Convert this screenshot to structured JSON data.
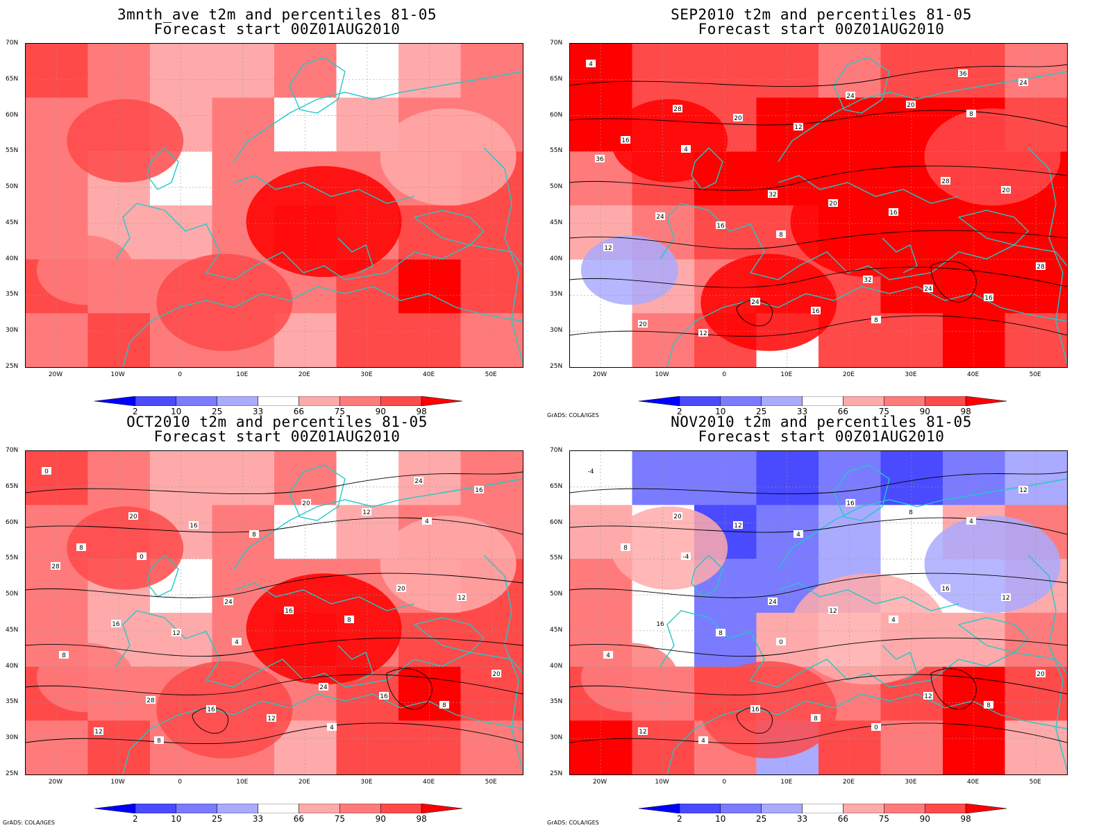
{
  "colorbar": {
    "labels": [
      "2",
      "10",
      "25",
      "33",
      "66",
      "75",
      "90",
      "98"
    ],
    "colors": [
      "#0000ff",
      "#4a4aff",
      "#7b7bff",
      "#aaaaff",
      "#ffffff",
      "#ffaaaa",
      "#ff7b7b",
      "#ff4a4a",
      "#ff0000"
    ]
  },
  "axes": {
    "y_ticks": [
      "70N",
      "65N",
      "60N",
      "55N",
      "50N",
      "45N",
      "40N",
      "35N",
      "30N",
      "25N"
    ],
    "x_ticks": [
      "20W",
      "10W",
      "0",
      "10E",
      "20E",
      "30E",
      "40E",
      "50E"
    ]
  },
  "credit": "GrADS: COLA/IGES",
  "panels": [
    {
      "title_line1": "3mnth_ave t2m and percentiles 81-05",
      "title_line2": "Forecast start 00Z01AUG2010",
      "show_credit": false,
      "dominant": "warm",
      "contour_labels": []
    },
    {
      "title_line1": "SEP2010 t2m and percentiles 81-05",
      "title_line2": "Forecast start 00Z01AUG2010",
      "show_credit": true,
      "dominant": "hot",
      "contour_labels": [
        "4",
        "4",
        "8",
        "8",
        "8",
        "12",
        "12",
        "12",
        "16",
        "16",
        "16",
        "16",
        "16",
        "20",
        "20",
        "20",
        "20",
        "20",
        "24",
        "24",
        "24",
        "24",
        "24",
        "28",
        "28",
        "28",
        "32",
        "32",
        "36",
        "36"
      ]
    },
    {
      "title_line1": "OCT2010 t2m and percentiles 81-05",
      "title_line2": "Forecast start 00Z01AUG2010",
      "show_credit": true,
      "dominant": "warm",
      "contour_labels": [
        "0",
        "0",
        "4",
        "4",
        "4",
        "8",
        "8",
        "8",
        "8",
        "8",
        "8",
        "12",
        "12",
        "12",
        "12",
        "12",
        "16",
        "16",
        "16",
        "16",
        "16",
        "16",
        "20",
        "20",
        "20",
        "20",
        "24",
        "24",
        "24",
        "28",
        "28"
      ]
    },
    {
      "title_line1": "NOV2010 t2m and percentiles 81-05",
      "title_line2": "Forecast start 00Z01AUG2010",
      "show_credit": true,
      "dominant": "mixed",
      "contour_labels": [
        "-4",
        "-4",
        "0",
        "0",
        "4",
        "4",
        "4",
        "4",
        "4",
        "8",
        "8",
        "8",
        "8",
        "8",
        "12",
        "12",
        "12",
        "12",
        "12",
        "12",
        "16",
        "16",
        "16",
        "16",
        "20",
        "20",
        "24"
      ]
    }
  ]
}
